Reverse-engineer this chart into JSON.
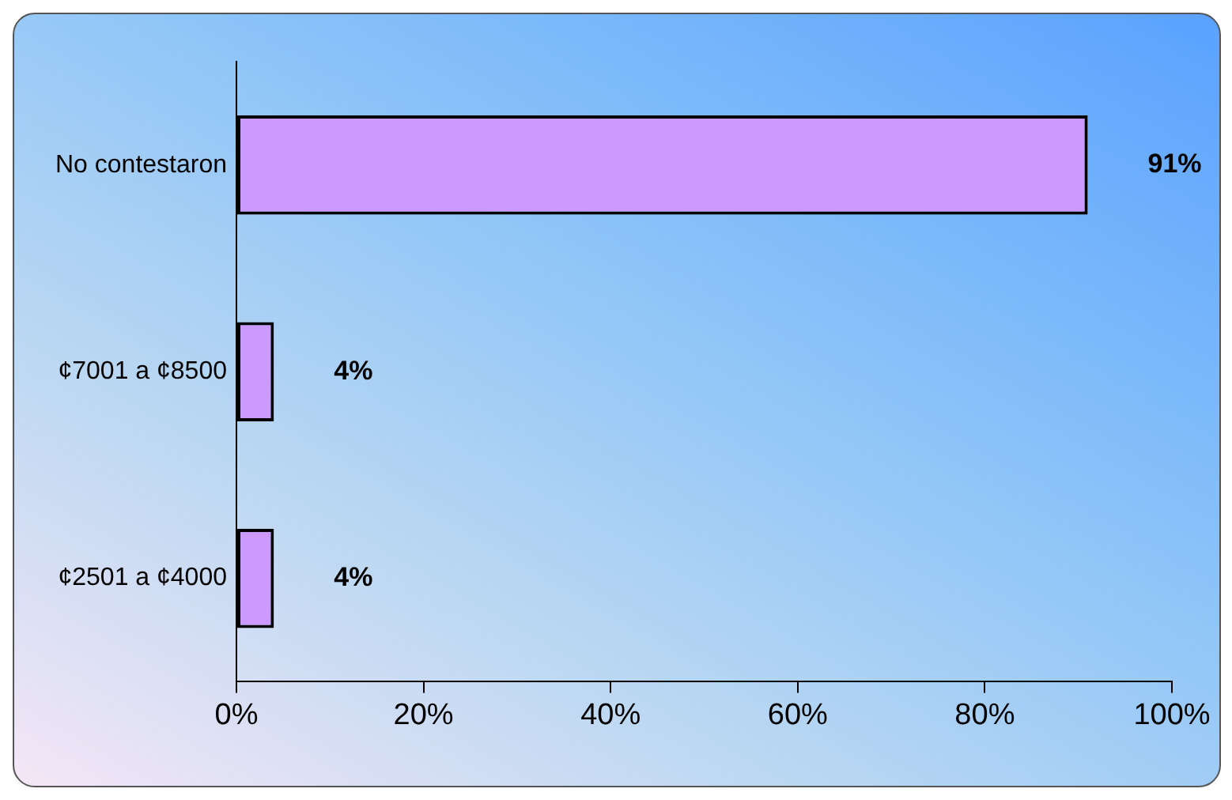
{
  "chart_data": {
    "type": "bar",
    "orientation": "horizontal",
    "categories": [
      "No contestaron",
      "¢7001 a ¢8500",
      "¢2501 a ¢4000"
    ],
    "values": [
      91,
      4,
      4
    ],
    "value_labels": [
      "91%",
      "4%",
      "4%"
    ],
    "color": "#cc99ff",
    "xlim": [
      0,
      100
    ],
    "xticks": [
      {
        "value": 0,
        "label": "0%"
      },
      {
        "value": 20,
        "label": "20%"
      },
      {
        "value": 40,
        "label": "40%"
      },
      {
        "value": 60,
        "label": "60%"
      },
      {
        "value": 80,
        "label": "80%"
      },
      {
        "value": 100,
        "label": "100%"
      }
    ],
    "grid": false,
    "legend": false
  }
}
